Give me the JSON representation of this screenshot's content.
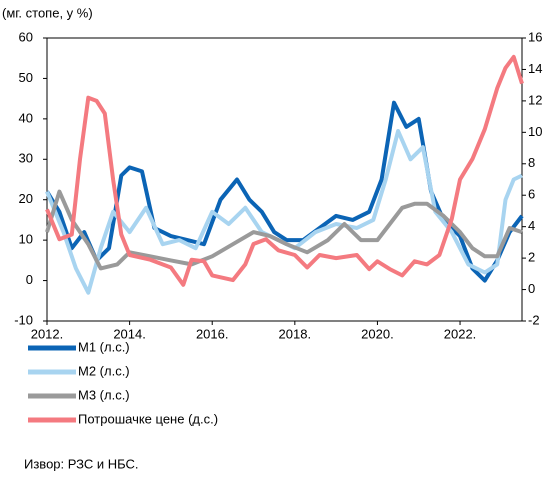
{
  "chart_data": {
    "type": "line",
    "title": "(мг. стопе, у %)",
    "source": "Извор: РЗС и НБС.",
    "xlim": [
      2012,
      2023.5
    ],
    "xticks": [
      {
        "value": 2012,
        "label": "2012."
      },
      {
        "value": 2014,
        "label": "2014."
      },
      {
        "value": 2016,
        "label": "2016."
      },
      {
        "value": 2018,
        "label": "2018."
      },
      {
        "value": 2020,
        "label": "2020."
      },
      {
        "value": 2022,
        "label": "2022."
      }
    ],
    "ylim": [
      -10,
      60
    ],
    "yticks": [
      -10,
      0,
      10,
      20,
      30,
      40,
      50,
      60
    ],
    "y2lim": [
      -2,
      16
    ],
    "y2ticks": [
      -2,
      0,
      2,
      4,
      6,
      8,
      10,
      12,
      14,
      16
    ],
    "series": [
      {
        "name": "M1 (л.с.)",
        "color": "#0b64b5",
        "x": [
          2012,
          2012.3,
          2012.6,
          2012.9,
          2013.2,
          2013.5,
          2013.8,
          2014.0,
          2014.3,
          2014.6,
          2015.0,
          2015.4,
          2015.8,
          2016.2,
          2016.6,
          2016.9,
          2017.2,
          2017.5,
          2017.8,
          2018.2,
          2018.6,
          2019.0,
          2019.4,
          2019.8,
          2020.1,
          2020.4,
          2020.7,
          2021.0,
          2021.3,
          2021.6,
          2022.0,
          2022.3,
          2022.6,
          2022.9,
          2023.2,
          2023.5
        ],
        "values": [
          22,
          17,
          8,
          12,
          5,
          8,
          26,
          28,
          27,
          13,
          11,
          10,
          9,
          20,
          25,
          20,
          17,
          12,
          10,
          10,
          13,
          16,
          15,
          17,
          25,
          44,
          38,
          40,
          22,
          15,
          11,
          3,
          0,
          5,
          12,
          16
        ]
      },
      {
        "name": "M2 (л.с.)",
        "color": "#a8d4f0",
        "x": [
          2012,
          2012.4,
          2012.7,
          2013.0,
          2013.3,
          2013.6,
          2014.0,
          2014.4,
          2014.8,
          2015.2,
          2015.6,
          2016.0,
          2016.4,
          2016.8,
          2017.2,
          2017.6,
          2018.0,
          2018.5,
          2019.0,
          2019.5,
          2019.9,
          2020.2,
          2020.5,
          2020.8,
          2021.1,
          2021.4,
          2021.8,
          2022.2,
          2022.6,
          2022.9,
          2023.1,
          2023.3,
          2023.5
        ],
        "values": [
          22,
          12,
          3,
          -3,
          8,
          17,
          12,
          18,
          9,
          10,
          8,
          17,
          14,
          18,
          12,
          10,
          8,
          12,
          14,
          13,
          15,
          25,
          37,
          30,
          33,
          17,
          12,
          4,
          2,
          4,
          20,
          25,
          26
        ]
      },
      {
        "name": "M3 (л.с.)",
        "color": "#9a9a9a",
        "x": [
          2012,
          2012.3,
          2012.6,
          2013.0,
          2013.3,
          2013.7,
          2014.0,
          2014.5,
          2015.0,
          2015.5,
          2016.0,
          2016.5,
          2017.0,
          2017.4,
          2017.8,
          2018.3,
          2018.8,
          2019.2,
          2019.6,
          2020.0,
          2020.3,
          2020.6,
          2020.9,
          2021.2,
          2021.6,
          2022.0,
          2022.3,
          2022.6,
          2022.9,
          2023.2,
          2023.5
        ],
        "values": [
          12,
          22,
          15,
          9,
          3,
          4,
          7,
          6,
          5,
          4,
          6,
          9,
          12,
          11,
          9,
          7,
          10,
          14,
          10,
          10,
          14,
          18,
          19,
          19,
          16,
          12,
          8,
          6,
          6,
          13,
          12
        ]
      },
      {
        "name": "Потрошачке цене (д.с.)",
        "color": "#f47a80",
        "axis": "y2",
        "x": [
          2012,
          2012.3,
          2012.6,
          2012.8,
          2013.0,
          2013.2,
          2013.4,
          2013.6,
          2013.8,
          2014.0,
          2014.5,
          2015.0,
          2015.3,
          2015.5,
          2015.8,
          2016.0,
          2016.5,
          2016.8,
          2017.0,
          2017.3,
          2017.6,
          2018.0,
          2018.3,
          2018.6,
          2019.0,
          2019.5,
          2019.8,
          2020.0,
          2020.3,
          2020.6,
          2020.9,
          2021.2,
          2021.5,
          2021.8,
          2022.0,
          2022.3,
          2022.6,
          2022.9,
          2023.1,
          2023.3,
          2023.5
        ],
        "values": [
          5.1,
          3.2,
          3.5,
          8.3,
          12.2,
          12.0,
          11.2,
          7.0,
          3.5,
          2.2,
          1.9,
          1.4,
          0.3,
          1.9,
          1.8,
          0.9,
          0.6,
          1.6,
          2.9,
          3.2,
          2.5,
          2.2,
          1.4,
          2.2,
          2.0,
          2.2,
          1.3,
          1.8,
          1.3,
          0.9,
          1.8,
          1.6,
          2.2,
          4.5,
          7.0,
          8.3,
          10.2,
          12.8,
          14.1,
          14.8,
          13.1
        ]
      }
    ]
  }
}
